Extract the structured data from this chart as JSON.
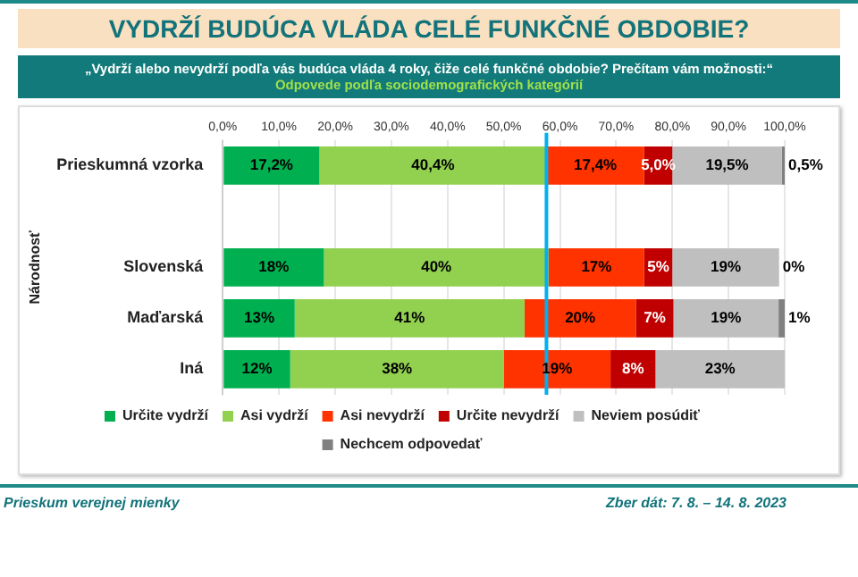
{
  "chart_data": {
    "type": "bar",
    "orientation": "horizontal",
    "stacked": true,
    "title": "VYDRŽÍ BUDÚCA VLÁDA CELÉ FUNKČNÉ OBDOBIE?",
    "subtitle": "„Vydrží alebo nevydrží podľa vás budúca vláda 4 roky, čiže celé funkčné obdobie? Prečítam vám možnosti:“",
    "ylabel": "Národnosť",
    "annotations": [
      "Odpovede podľa sociodemografických kategórií",
      "Prieskum verejnej mienky",
      "Zber dát: 7. 8. – 14. 8. 2023"
    ],
    "categories": [
      "Prieskumná vzorka",
      null,
      "Slovenská",
      "Maďarská",
      "Iná"
    ],
    "series": [
      {
        "name": "Určite vydrží",
        "color": "#00b050",
        "values": [
          17.2,
          null,
          18,
          12.8,
          12
        ],
        "value_labels": [
          "17,2%",
          null,
          "18%",
          "13%",
          "12%"
        ]
      },
      {
        "name": "Asi vydrží",
        "color": "#92d050",
        "values": [
          40.4,
          null,
          40,
          40.9,
          38
        ],
        "value_labels": [
          "40,4%",
          null,
          "40%",
          "41%",
          "38%"
        ]
      },
      {
        "name": "Asi nevydrží",
        "color": "#ff3300",
        "values": [
          17.4,
          null,
          17,
          19.8,
          19
        ],
        "value_labels": [
          "17,4%",
          null,
          "17%",
          "20%",
          "19%"
        ]
      },
      {
        "name": "Určite nevydrží",
        "color": "#c00000",
        "values": [
          5.0,
          null,
          5,
          6.7,
          8
        ],
        "value_labels": [
          "5,0%",
          null,
          "5%",
          "7%",
          "8%"
        ]
      },
      {
        "name": "Neviem posúdiť",
        "color": "#bfbfbf",
        "values": [
          19.5,
          null,
          19,
          18.7,
          23
        ],
        "value_labels": [
          "19,5%",
          null,
          "19%",
          "19%",
          "23%"
        ]
      },
      {
        "name": "Nechcem odpovedať",
        "color": "#808080",
        "values": [
          0.5,
          null,
          0,
          1.1,
          0
        ],
        "value_labels": [
          "0,5%",
          null,
          "0%",
          "1%",
          null
        ]
      }
    ],
    "xlim": [
      0,
      100
    ],
    "xticks": [
      {
        "value": 0,
        "label": "0,0%"
      },
      {
        "value": 10,
        "label": "10,0%"
      },
      {
        "value": 20,
        "label": "20,0%"
      },
      {
        "value": 30,
        "label": "30,0%"
      },
      {
        "value": 40,
        "label": "40,0%"
      },
      {
        "value": 50,
        "label": "50,0%"
      },
      {
        "value": 60,
        "label": "60,0%"
      },
      {
        "value": 70,
        "label": "70,0%"
      },
      {
        "value": 80,
        "label": "80,0%"
      },
      {
        "value": 90,
        "label": "90,0%"
      },
      {
        "value": 100,
        "label": "100,0%"
      }
    ],
    "ref_lines": [
      {
        "axis": "x",
        "value": 57.6,
        "color": "#00b0f0"
      }
    ],
    "grid": "x",
    "legend": "bottom"
  }
}
